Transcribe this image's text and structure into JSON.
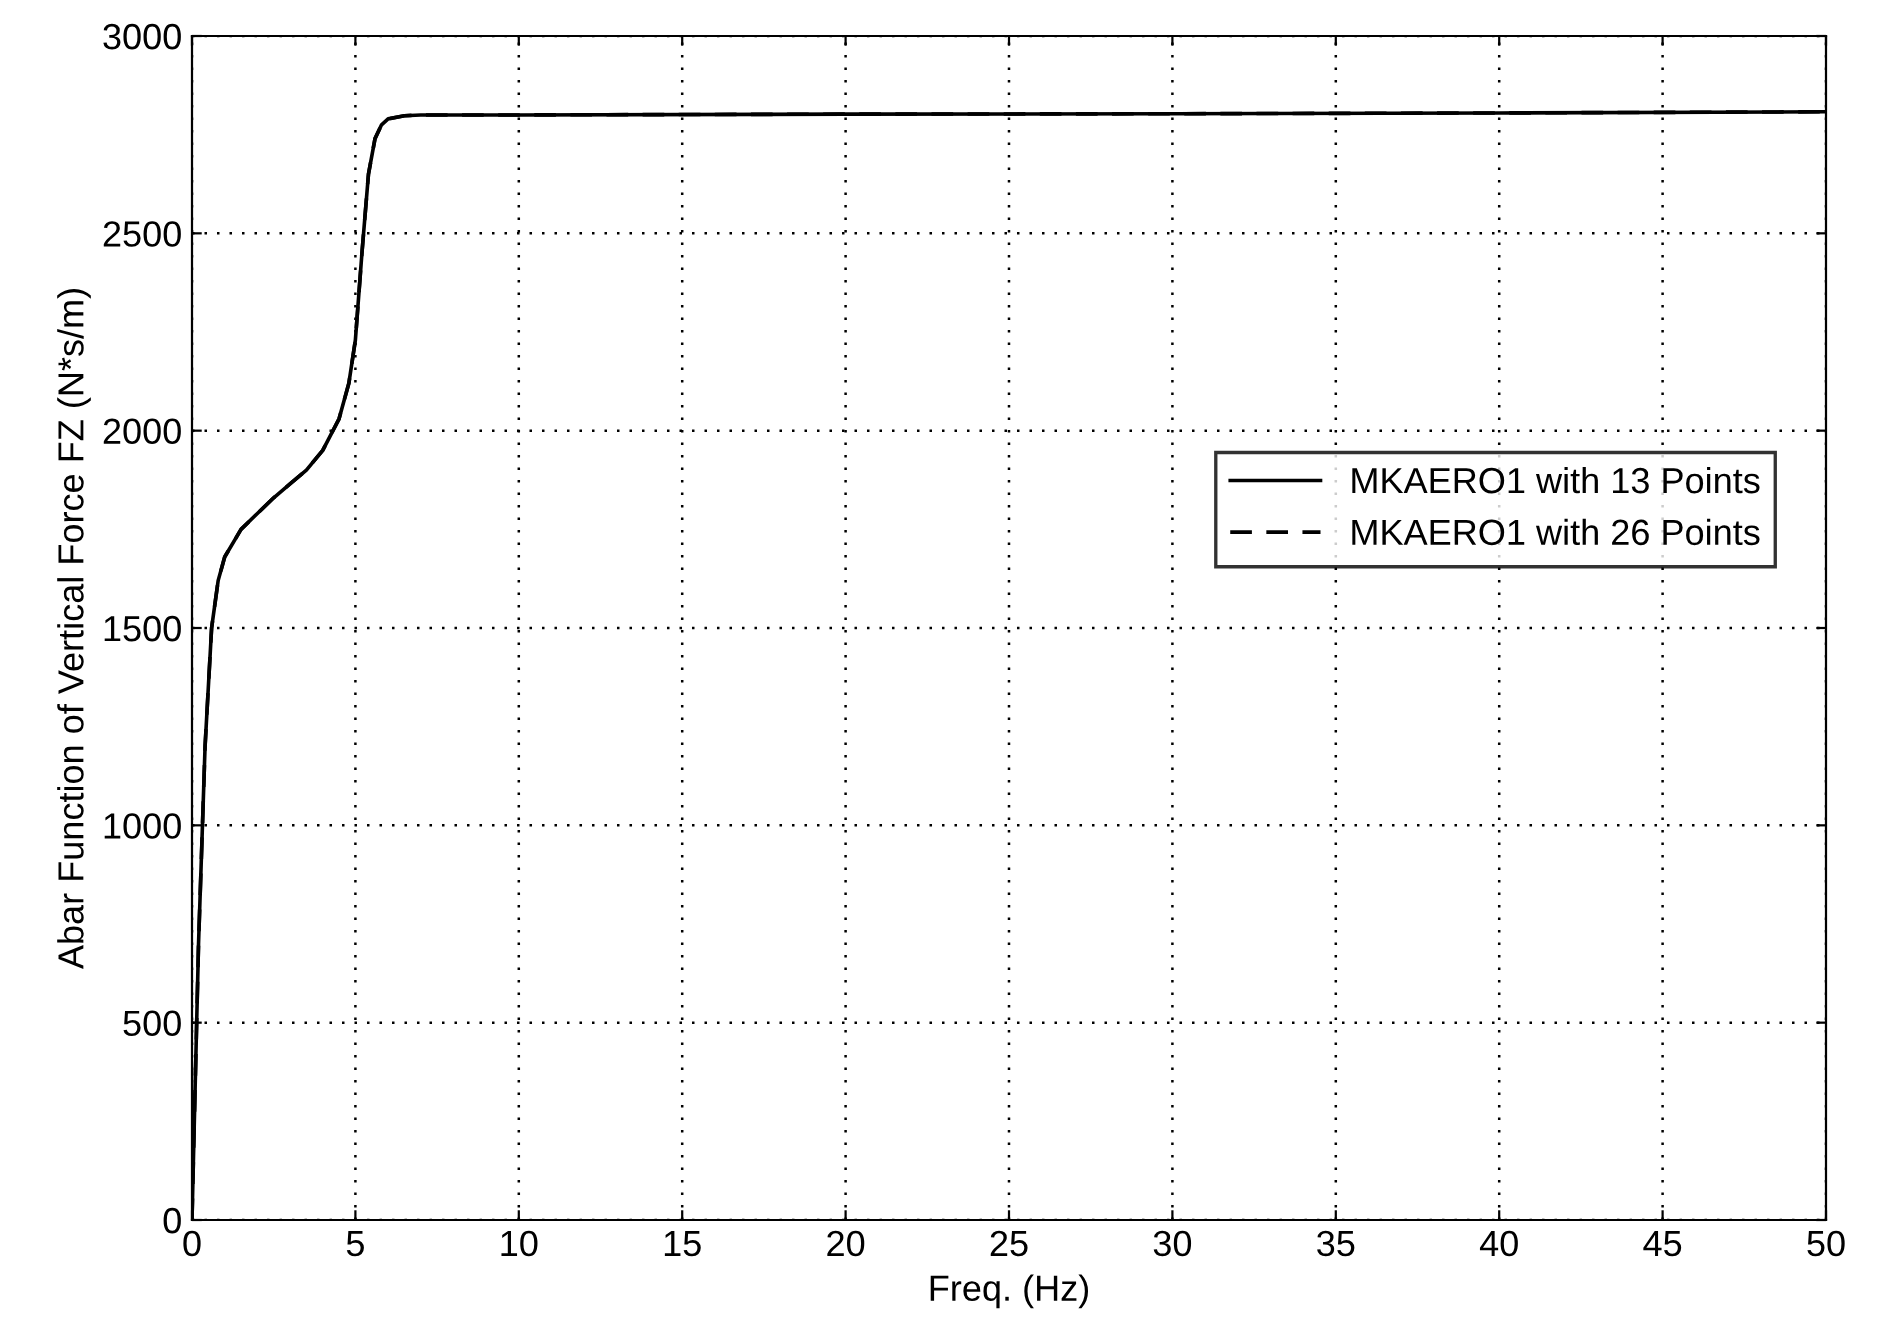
{
  "chart_data": {
    "type": "line",
    "xlabel": "Freq. (Hz)",
    "ylabel": "Abar Function of Vertical Force FZ (N*s/m)",
    "xlim": [
      0,
      50
    ],
    "ylim": [
      0,
      3000
    ],
    "xticks": [
      0,
      5,
      10,
      15,
      20,
      25,
      30,
      35,
      40,
      45,
      50
    ],
    "yticks": [
      0,
      500,
      1000,
      1500,
      2000,
      2500,
      3000
    ],
    "grid": true,
    "legend": "right",
    "marker": "none",
    "series": [
      {
        "name": "MKAERO1 with 13 Points",
        "color": "#000000",
        "line_style": "solid",
        "x": [
          0,
          0.2,
          0.4,
          0.6,
          0.8,
          1,
          1.5,
          2,
          2.5,
          3,
          3.5,
          4,
          4.5,
          4.8,
          5,
          5.2,
          5.4,
          5.6,
          5.8,
          6,
          6.5,
          7,
          10,
          20,
          30,
          40,
          50
        ],
        "values": [
          0,
          700,
          1200,
          1500,
          1620,
          1680,
          1750,
          1790,
          1830,
          1865,
          1900,
          1950,
          2030,
          2120,
          2230,
          2450,
          2650,
          2740,
          2775,
          2790,
          2798,
          2800,
          2800,
          2802,
          2803,
          2805,
          2808
        ]
      },
      {
        "name": "MKAERO1 with 26 Points",
        "color": "#000000",
        "line_style": "dashed",
        "x": [
          0,
          0.2,
          0.4,
          0.6,
          0.8,
          1,
          1.5,
          2,
          2.5,
          3,
          3.5,
          4,
          4.5,
          4.8,
          5,
          5.2,
          5.4,
          5.6,
          5.8,
          6,
          6.5,
          7,
          10,
          20,
          30,
          40,
          50
        ],
        "values": [
          0,
          700,
          1200,
          1500,
          1620,
          1680,
          1750,
          1790,
          1830,
          1865,
          1900,
          1950,
          2030,
          2120,
          2230,
          2450,
          2650,
          2740,
          2775,
          2790,
          2798,
          2800,
          2800,
          2802,
          2803,
          2805,
          2808
        ]
      }
    ]
  }
}
